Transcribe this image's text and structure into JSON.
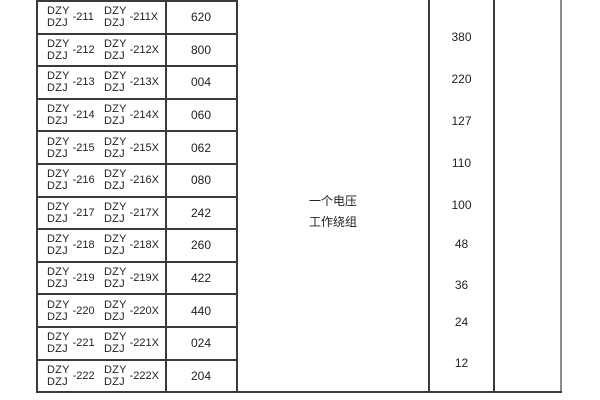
{
  "table": {
    "prefix_top": "DZY",
    "prefix_bottom": "DZJ",
    "rows": [
      {
        "model": "-211",
        "model_x": "-211X",
        "code": "620"
      },
      {
        "model": "-212",
        "model_x": "-212X",
        "code": "800"
      },
      {
        "model": "-213",
        "model_x": "-213X",
        "code": "004"
      },
      {
        "model": "-214",
        "model_x": "-214X",
        "code": "060"
      },
      {
        "model": "-215",
        "model_x": "-215X",
        "code": "062"
      },
      {
        "model": "-216",
        "model_x": "-216X",
        "code": "080"
      },
      {
        "model": "-217",
        "model_x": "-217X",
        "code": "242"
      },
      {
        "model": "-218",
        "model_x": "-218X",
        "code": "260"
      },
      {
        "model": "-219",
        "model_x": "-219X",
        "code": "422"
      },
      {
        "model": "-220",
        "model_x": "-220X",
        "code": "440"
      },
      {
        "model": "-221",
        "model_x": "-221X",
        "code": "024"
      },
      {
        "model": "-222",
        "model_x": "-222X",
        "code": "204"
      }
    ],
    "winding_label_line1": "一个电压",
    "winding_label_line2": "工作绕组",
    "voltages": [
      "380",
      "220",
      "127",
      "110",
      "100",
      "48",
      "36",
      "24",
      "12"
    ]
  },
  "colors": {
    "background": "#ffffff",
    "text": "#1f1f1f",
    "grid_line": "#3a3a3a",
    "outer_right_line": "#8d8d8d"
  }
}
